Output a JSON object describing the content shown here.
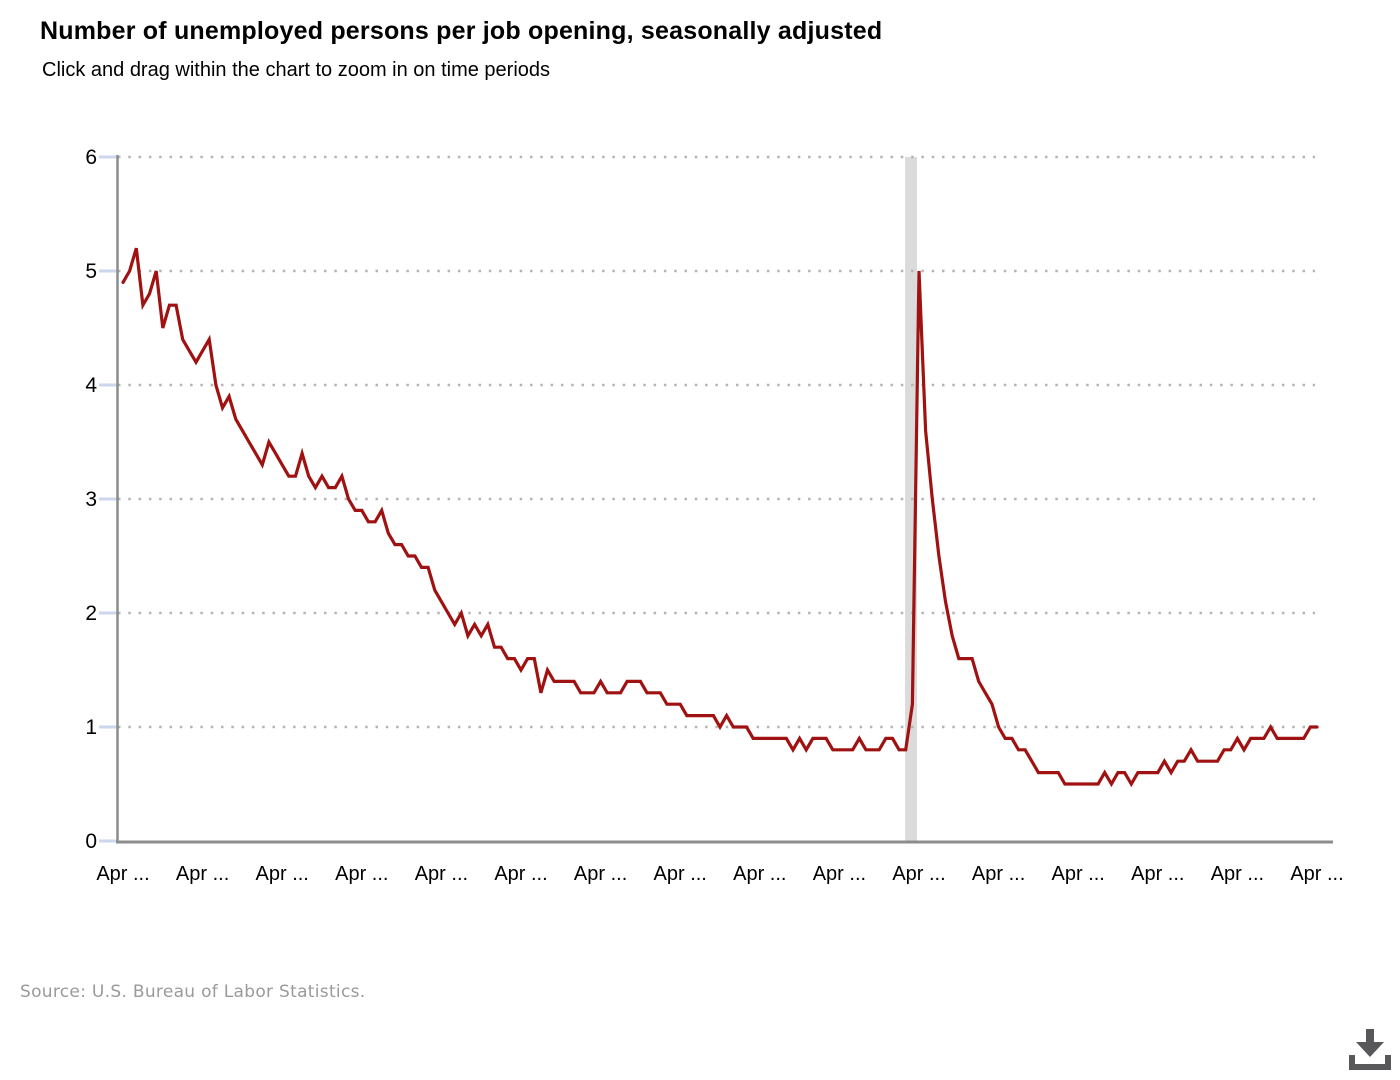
{
  "header": {
    "title": "Number of unemployed persons per job opening, seasonally adjusted",
    "subtitle": "Click and drag within the chart to zoom in on time periods"
  },
  "footer": {
    "source_text": "Source: U.S. Bureau of Labor Statistics."
  },
  "icons": {
    "download": "download-icon"
  },
  "colors": {
    "line": "#A01212",
    "axis": "#8c8c8c",
    "gridline": "#b4b4b4",
    "tick": "#cbd7eb",
    "recession_band": "#dbdbdb",
    "label_text": "#000000",
    "source_text": "#9a9a9a",
    "download_icon": "#58585a"
  },
  "chart_data": {
    "type": "line",
    "title": "Number of unemployed persons per job opening, seasonally adjusted",
    "xlabel": "",
    "ylabel": "",
    "ylim": [
      0,
      6
    ],
    "y_tick_labels": [
      "0",
      "1",
      "2",
      "3",
      "4",
      "5",
      "6"
    ],
    "x_tick_labels": [
      "Apr ...",
      "Apr ...",
      "Apr ...",
      "Apr ...",
      "Apr ...",
      "Apr ...",
      "Apr ...",
      "Apr ...",
      "Apr ...",
      "Apr ...",
      "Apr ...",
      "Apr ...",
      "Apr ...",
      "Apr ...",
      "Apr ...",
      "Apr ..."
    ],
    "points_per_x_tick": 12,
    "grid": "horizontal-dotted",
    "legend": "none",
    "recession_band": {
      "from_index": 117.9,
      "to_index": 119.7
    },
    "values": [
      4.9,
      5.0,
      5.2,
      4.7,
      4.8,
      5.0,
      4.5,
      4.7,
      4.7,
      4.4,
      4.3,
      4.2,
      4.3,
      4.4,
      4.0,
      3.8,
      3.9,
      3.7,
      3.6,
      3.5,
      3.4,
      3.3,
      3.5,
      3.4,
      3.3,
      3.2,
      3.2,
      3.4,
      3.2,
      3.1,
      3.2,
      3.1,
      3.1,
      3.2,
      3.0,
      2.9,
      2.9,
      2.8,
      2.8,
      2.9,
      2.7,
      2.6,
      2.6,
      2.5,
      2.5,
      2.4,
      2.4,
      2.2,
      2.1,
      2.0,
      1.9,
      2.0,
      1.8,
      1.9,
      1.8,
      1.9,
      1.7,
      1.7,
      1.6,
      1.6,
      1.5,
      1.6,
      1.6,
      1.3,
      1.5,
      1.4,
      1.4,
      1.4,
      1.4,
      1.3,
      1.3,
      1.3,
      1.4,
      1.3,
      1.3,
      1.3,
      1.4,
      1.4,
      1.4,
      1.3,
      1.3,
      1.3,
      1.2,
      1.2,
      1.2,
      1.1,
      1.1,
      1.1,
      1.1,
      1.1,
      1.0,
      1.1,
      1.0,
      1.0,
      1.0,
      0.9,
      0.9,
      0.9,
      0.9,
      0.9,
      0.9,
      0.8,
      0.9,
      0.8,
      0.9,
      0.9,
      0.9,
      0.8,
      0.8,
      0.8,
      0.8,
      0.9,
      0.8,
      0.8,
      0.8,
      0.9,
      0.9,
      0.8,
      0.8,
      1.2,
      5.0,
      3.6,
      3.0,
      2.5,
      2.1,
      1.8,
      1.6,
      1.6,
      1.6,
      1.4,
      1.3,
      1.2,
      1.0,
      0.9,
      0.9,
      0.8,
      0.8,
      0.7,
      0.6,
      0.6,
      0.6,
      0.6,
      0.5,
      0.5,
      0.5,
      0.5,
      0.5,
      0.5,
      0.6,
      0.5,
      0.6,
      0.6,
      0.5,
      0.6,
      0.6,
      0.6,
      0.6,
      0.7,
      0.6,
      0.7,
      0.7,
      0.8,
      0.7,
      0.7,
      0.7,
      0.7,
      0.8,
      0.8,
      0.9,
      0.8,
      0.9,
      0.9,
      0.9,
      1.0,
      0.9,
      0.9,
      0.9,
      0.9,
      0.9,
      1.0,
      1.0
    ]
  }
}
